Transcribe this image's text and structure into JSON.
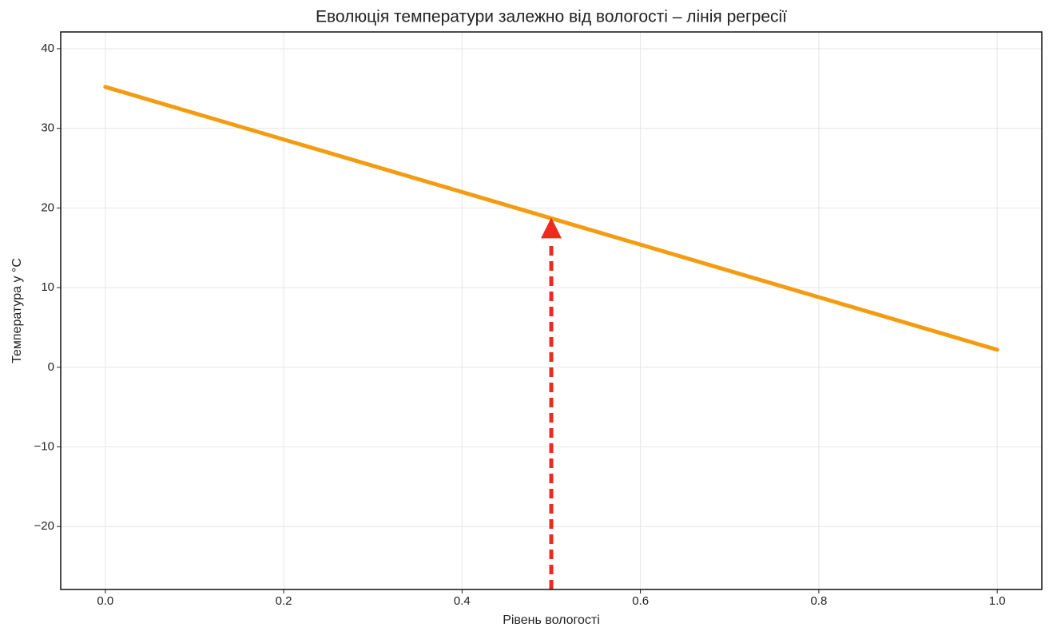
{
  "chart_data": {
    "type": "line",
    "title": "Еволюція температури залежно від вологості – лінія регресії",
    "x_label": "Рівень вологості",
    "y_label": "Температура у °C",
    "x": [
      0,
      1
    ],
    "series": [
      {
        "color": "#f39c12",
        "values": [
          35.2,
          2.2
        ]
      }
    ],
    "xlim": [
      -0.05,
      1.05
    ],
    "xticks": [
      {
        "value": 0,
        "label": "0.0"
      },
      0.2,
      0.4,
      0.6,
      0.8,
      {
        "value": 1,
        "label": "1.0"
      }
    ],
    "ylim": [
      -27.9,
      42.1
    ],
    "yticks": [
      {
        "value": -20,
        "label": "−20"
      },
      {
        "value": -10,
        "label": "−10"
      },
      0,
      10,
      20,
      30,
      40
    ],
    "grid": true,
    "arrow": {
      "x": 0.5,
      "y_from": -27.9,
      "y_to": 18.8,
      "color": "#ee2a1e"
    }
  }
}
